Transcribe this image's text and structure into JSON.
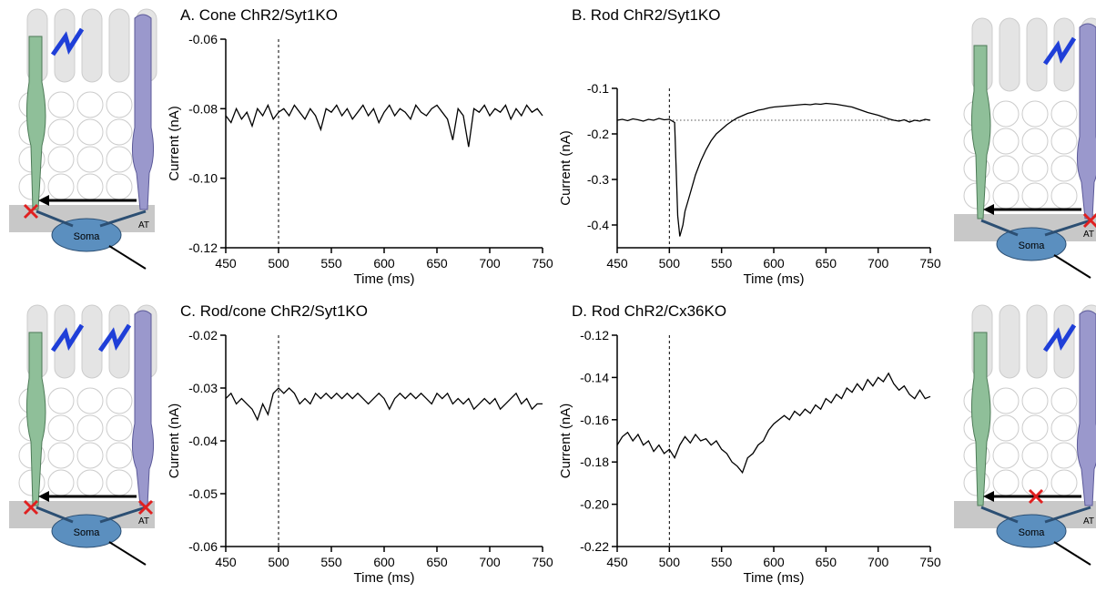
{
  "chart_data": [
    {
      "type": "line",
      "title": "A. Cone ChR2/Syt1KO",
      "xlabel": "Time (ms)",
      "ylabel": "Current (nA)",
      "color": "#000000",
      "x": [
        450,
        455,
        460,
        465,
        470,
        475,
        480,
        485,
        490,
        495,
        500,
        505,
        510,
        515,
        520,
        525,
        530,
        535,
        540,
        545,
        550,
        555,
        560,
        565,
        570,
        575,
        580,
        585,
        590,
        595,
        600,
        605,
        610,
        615,
        620,
        625,
        630,
        635,
        640,
        645,
        650,
        655,
        660,
        665,
        670,
        675,
        680,
        685,
        690,
        695,
        700,
        705,
        710,
        715,
        720,
        725,
        730,
        735,
        740,
        745,
        750
      ],
      "values": [
        -0.082,
        -0.084,
        -0.08,
        -0.083,
        -0.081,
        -0.085,
        -0.08,
        -0.082,
        -0.079,
        -0.083,
        -0.081,
        -0.08,
        -0.082,
        -0.079,
        -0.081,
        -0.083,
        -0.08,
        -0.082,
        -0.086,
        -0.08,
        -0.081,
        -0.079,
        -0.082,
        -0.08,
        -0.083,
        -0.081,
        -0.079,
        -0.082,
        -0.08,
        -0.084,
        -0.081,
        -0.079,
        -0.082,
        -0.08,
        -0.081,
        -0.083,
        -0.079,
        -0.081,
        -0.082,
        -0.08,
        -0.079,
        -0.081,
        -0.083,
        -0.089,
        -0.08,
        -0.082,
        -0.091,
        -0.08,
        -0.081,
        -0.079,
        -0.082,
        -0.08,
        -0.081,
        -0.079,
        -0.083,
        -0.08,
        -0.082,
        -0.079,
        -0.081,
        -0.08,
        -0.082
      ],
      "xlim": [
        450,
        750
      ],
      "xticks": [
        450,
        500,
        550,
        600,
        650,
        700,
        750
      ],
      "ylim": [
        -0.12,
        -0.06
      ],
      "yticks": [
        -0.06,
        -0.08,
        {
          "value": -0.1,
          "label": "-0.10"
        },
        -0.12
      ],
      "vline": 500
    },
    {
      "type": "line",
      "title": "B. Rod ChR2/Syt1KO",
      "xlabel": "Time (ms)",
      "ylabel": "Current (nA)",
      "color": "#000000",
      "x": [
        450,
        455,
        460,
        465,
        470,
        475,
        480,
        485,
        490,
        495,
        500,
        505,
        508,
        510,
        513,
        515,
        520,
        525,
        530,
        535,
        540,
        545,
        550,
        555,
        560,
        565,
        570,
        575,
        580,
        585,
        590,
        595,
        600,
        605,
        610,
        615,
        620,
        625,
        630,
        635,
        640,
        645,
        650,
        655,
        660,
        665,
        670,
        675,
        680,
        685,
        690,
        695,
        700,
        705,
        710,
        715,
        720,
        725,
        730,
        735,
        740,
        745,
        750
      ],
      "values": [
        -0.17,
        -0.168,
        -0.171,
        -0.167,
        -0.169,
        -0.172,
        -0.168,
        -0.17,
        -0.166,
        -0.169,
        -0.168,
        -0.175,
        -0.38,
        -0.425,
        -0.4,
        -0.37,
        -0.33,
        -0.29,
        -0.26,
        -0.235,
        -0.215,
        -0.2,
        -0.19,
        -0.18,
        -0.172,
        -0.165,
        -0.16,
        -0.155,
        -0.152,
        -0.148,
        -0.146,
        -0.143,
        -0.141,
        -0.14,
        -0.139,
        -0.138,
        -0.137,
        -0.136,
        -0.135,
        -0.136,
        -0.134,
        -0.135,
        -0.133,
        -0.134,
        -0.135,
        -0.137,
        -0.139,
        -0.141,
        -0.145,
        -0.149,
        -0.153,
        -0.156,
        -0.159,
        -0.163,
        -0.167,
        -0.17,
        -0.172,
        -0.169,
        -0.174,
        -0.17,
        -0.172,
        -0.168,
        -0.17
      ],
      "xlim": [
        450,
        750
      ],
      "xticks": [
        450,
        500,
        550,
        600,
        650,
        700,
        750
      ],
      "ylim": [
        -0.45,
        -0.1
      ],
      "yticks": [
        -0.1,
        -0.2,
        -0.3,
        -0.4
      ],
      "vline": 500,
      "hline": -0.17
    },
    {
      "type": "line",
      "title": "C. Rod/cone ChR2/Syt1KO",
      "xlabel": "Time (ms)",
      "ylabel": "Current (nA)",
      "color": "#000000",
      "x": [
        450,
        455,
        460,
        465,
        470,
        475,
        480,
        485,
        490,
        495,
        500,
        505,
        510,
        515,
        520,
        525,
        530,
        535,
        540,
        545,
        550,
        555,
        560,
        565,
        570,
        575,
        580,
        585,
        590,
        595,
        600,
        605,
        610,
        615,
        620,
        625,
        630,
        635,
        640,
        645,
        650,
        655,
        660,
        665,
        670,
        675,
        680,
        685,
        690,
        695,
        700,
        705,
        710,
        715,
        720,
        725,
        730,
        735,
        740,
        745,
        750
      ],
      "values": [
        -0.032,
        -0.031,
        -0.033,
        -0.032,
        -0.033,
        -0.034,
        -0.036,
        -0.033,
        -0.035,
        -0.031,
        -0.03,
        -0.031,
        -0.03,
        -0.031,
        -0.033,
        -0.032,
        -0.033,
        -0.031,
        -0.032,
        -0.031,
        -0.032,
        -0.031,
        -0.032,
        -0.031,
        -0.032,
        -0.031,
        -0.032,
        -0.033,
        -0.032,
        -0.031,
        -0.032,
        -0.034,
        -0.032,
        -0.031,
        -0.032,
        -0.031,
        -0.032,
        -0.031,
        -0.032,
        -0.033,
        -0.031,
        -0.032,
        -0.031,
        -0.033,
        -0.032,
        -0.033,
        -0.032,
        -0.034,
        -0.033,
        -0.032,
        -0.033,
        -0.032,
        -0.034,
        -0.033,
        -0.032,
        -0.031,
        -0.033,
        -0.032,
        -0.034,
        -0.033,
        -0.033
      ],
      "xlim": [
        450,
        750
      ],
      "xticks": [
        450,
        500,
        550,
        600,
        650,
        700,
        750
      ],
      "ylim": [
        -0.06,
        -0.02
      ],
      "yticks": [
        -0.02,
        -0.03,
        -0.04,
        -0.05,
        -0.06
      ],
      "vline": 500
    },
    {
      "type": "line",
      "title": "D. Rod ChR2/Cx36KO",
      "xlabel": "Time (ms)",
      "ylabel": "Current (nA)",
      "color": "#000000",
      "x": [
        450,
        455,
        460,
        465,
        470,
        475,
        480,
        485,
        490,
        495,
        500,
        505,
        510,
        515,
        520,
        525,
        530,
        535,
        540,
        545,
        550,
        555,
        560,
        565,
        570,
        575,
        580,
        585,
        590,
        595,
        600,
        605,
        610,
        615,
        620,
        625,
        630,
        635,
        640,
        645,
        650,
        655,
        660,
        665,
        670,
        675,
        680,
        685,
        690,
        695,
        700,
        705,
        710,
        715,
        720,
        725,
        730,
        735,
        740,
        745,
        750
      ],
      "values": [
        -0.172,
        -0.168,
        -0.166,
        -0.17,
        -0.167,
        -0.172,
        -0.17,
        -0.175,
        -0.172,
        -0.176,
        -0.174,
        -0.178,
        -0.172,
        -0.168,
        -0.171,
        -0.167,
        -0.17,
        -0.169,
        -0.172,
        -0.17,
        -0.174,
        -0.176,
        -0.18,
        -0.182,
        -0.185,
        -0.178,
        -0.176,
        -0.172,
        -0.17,
        -0.165,
        -0.162,
        -0.16,
        -0.158,
        -0.16,
        -0.156,
        -0.158,
        -0.155,
        -0.157,
        -0.153,
        -0.155,
        -0.15,
        -0.152,
        -0.148,
        -0.15,
        -0.145,
        -0.147,
        -0.143,
        -0.146,
        -0.141,
        -0.144,
        -0.14,
        -0.142,
        -0.138,
        -0.143,
        -0.146,
        -0.144,
        -0.148,
        -0.15,
        -0.146,
        -0.15,
        -0.149
      ],
      "xlim": [
        450,
        750
      ],
      "xticks": [
        450,
        500,
        550,
        600,
        650,
        700,
        750
      ],
      "ylim": [
        -0.22,
        -0.12
      ],
      "yticks": [
        -0.12,
        -0.14,
        -0.16,
        -0.18,
        {
          "value": -0.2,
          "label": "-0.20"
        },
        -0.22
      ],
      "vline": 500
    }
  ],
  "diagrams": [
    {
      "soma": "Soma",
      "terminal": "AT"
    },
    {
      "soma": "Soma",
      "terminal": "AT"
    },
    {
      "soma": "Soma",
      "terminal": "AT"
    },
    {
      "soma": "Soma",
      "terminal": "AT"
    }
  ]
}
